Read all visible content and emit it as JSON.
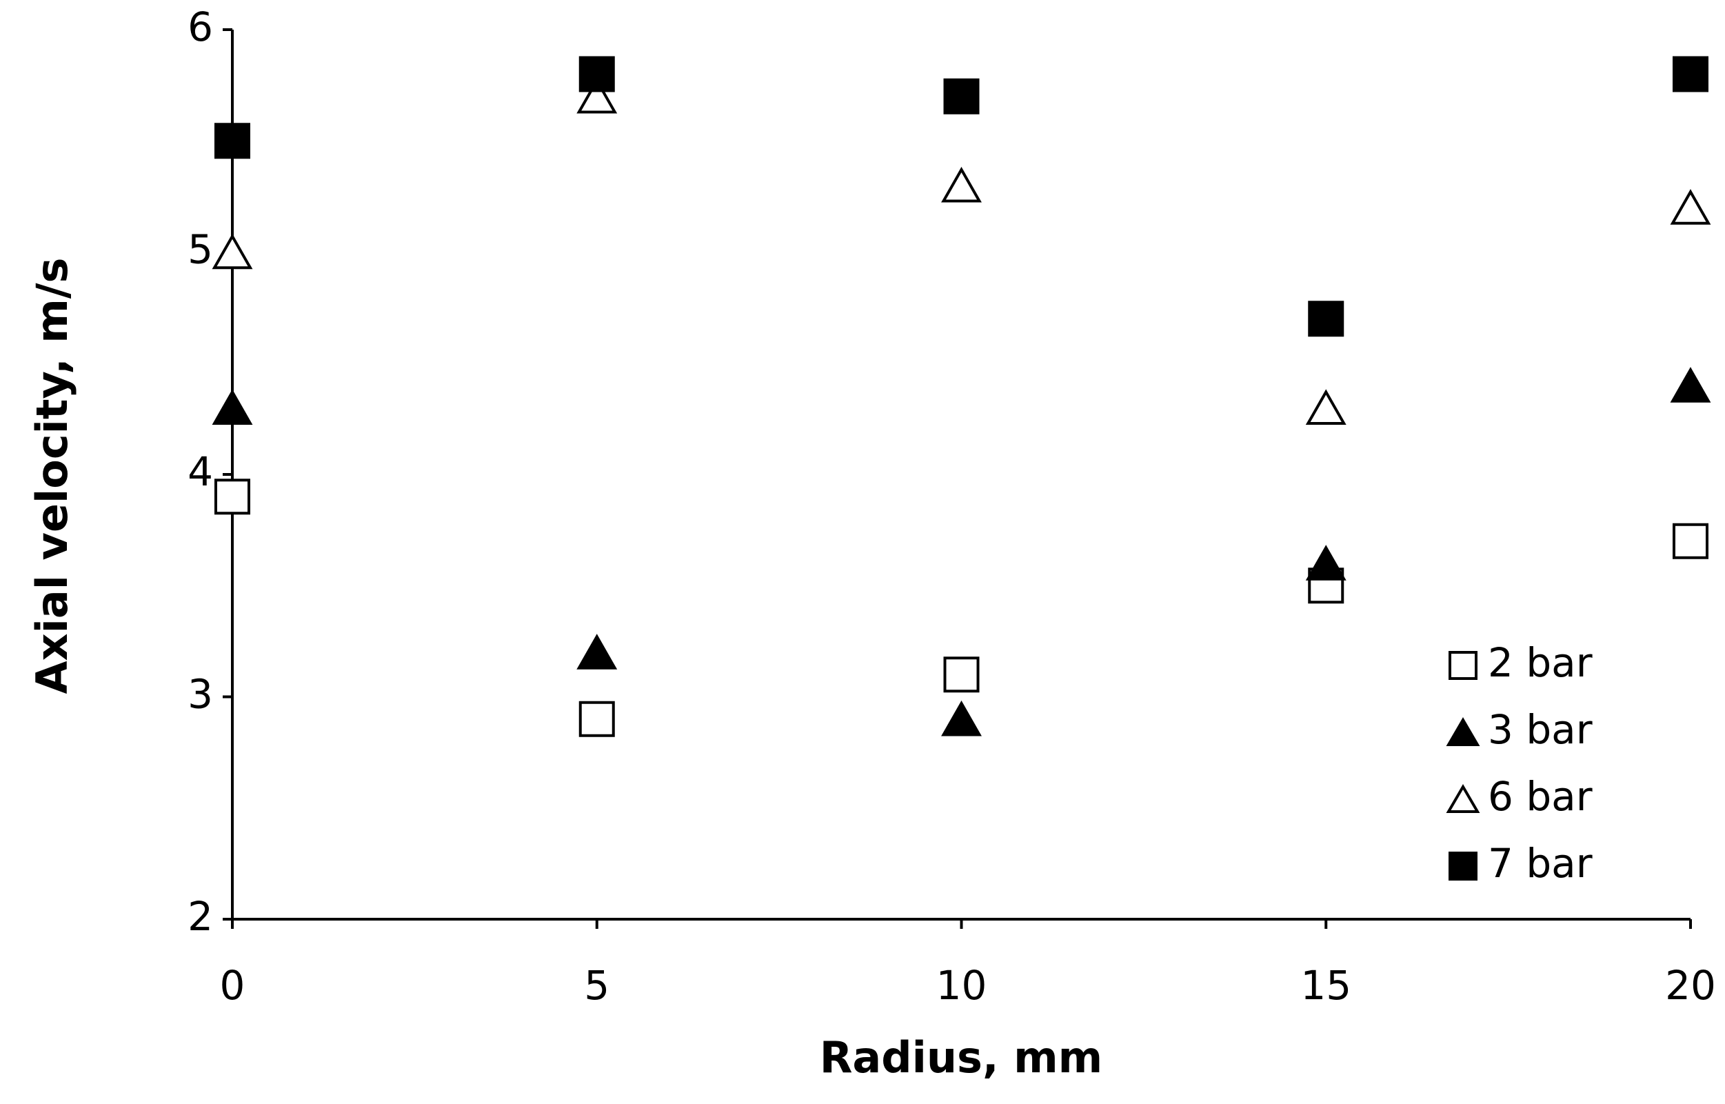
{
  "chart_data": {
    "type": "scatter",
    "xlabel": "Radius, mm",
    "ylabel": "Axial velocity, m/s",
    "x": [
      0,
      5,
      10,
      15,
      20
    ],
    "series": [
      {
        "name": "2 bar",
        "color": "#000000",
        "marker": "square",
        "filled": false,
        "values": [
          3.9,
          2.9,
          3.1,
          3.5,
          3.7
        ]
      },
      {
        "name": "3 bar",
        "color": "#000000",
        "marker": "triangle",
        "filled": true,
        "values": [
          4.3,
          3.2,
          2.9,
          3.6,
          4.4
        ]
      },
      {
        "name": "6 bar",
        "color": "#000000",
        "marker": "triangle",
        "filled": false,
        "values": [
          5.0,
          5.7,
          5.3,
          4.3,
          5.2
        ]
      },
      {
        "name": "7 bar",
        "color": "#000000",
        "marker": "square",
        "filled": true,
        "values": [
          5.5,
          5.8,
          5.7,
          4.7,
          5.8
        ]
      }
    ],
    "xlim": [
      0,
      20
    ],
    "xticks": [
      0,
      5,
      10,
      15,
      20
    ],
    "ylim": [
      2,
      6
    ],
    "yticks": [
      2,
      3,
      4,
      5,
      6
    ],
    "grid": false,
    "legend": "lower right"
  }
}
